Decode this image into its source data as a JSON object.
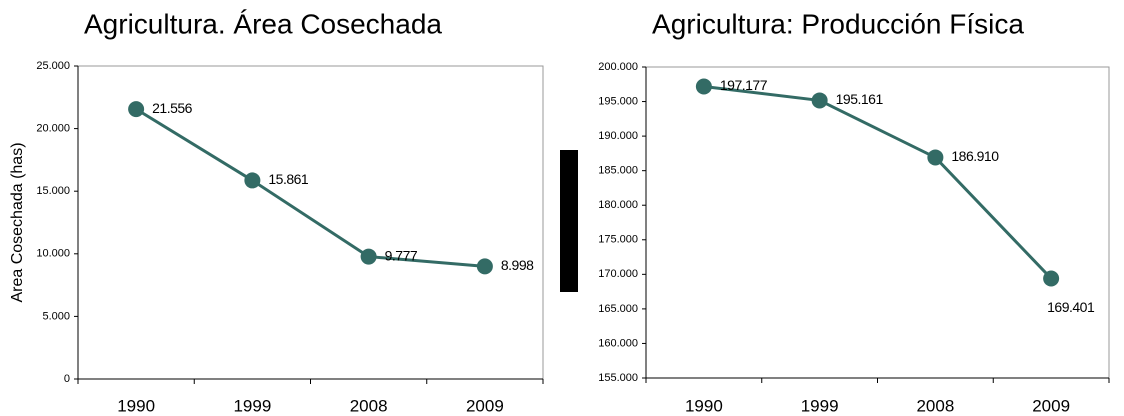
{
  "chart_data": [
    {
      "type": "line",
      "title": "Agricultura. Área Cosechada",
      "y_label": "Area Cosechada (has)",
      "categories": [
        "1990",
        "1999",
        "2008",
        "2009"
      ],
      "values": [
        21556,
        15861,
        9777,
        8998
      ],
      "value_labels": [
        "21.556",
        "15.861",
        "9.777",
        "8.998"
      ],
      "color": "#336b65",
      "ylim": [
        0,
        25000
      ],
      "yticks": [
        0,
        {
          "value": 5000,
          "label": "5.000"
        },
        {
          "value": 10000,
          "label": "10.000"
        },
        {
          "value": 15000,
          "label": "15.000"
        },
        {
          "value": 20000,
          "label": "20.000"
        },
        {
          "value": 25000,
          "label": "25.000"
        }
      ],
      "grid": false
    },
    {
      "type": "line",
      "title": "Agricultura: Producción Física",
      "categories": [
        "1990",
        "1999",
        "2008",
        "2009"
      ],
      "values": [
        197177,
        195161,
        186910,
        169401
      ],
      "value_labels": [
        "197.177",
        "195.161",
        "186.910",
        "169.401"
      ],
      "color": "#336b65",
      "ylim": [
        155000,
        200000
      ],
      "yticks": [
        {
          "value": 155000,
          "label": "155.000"
        },
        {
          "value": 160000,
          "label": "160.000"
        },
        {
          "value": 165000,
          "label": "165.000"
        },
        {
          "value": 170000,
          "label": "170.000"
        },
        {
          "value": 175000,
          "label": "175.000"
        },
        {
          "value": 180000,
          "label": "180.000"
        },
        {
          "value": 185000,
          "label": "185.000"
        },
        {
          "value": 190000,
          "label": "190.000"
        },
        {
          "value": 195000,
          "label": "195.000"
        },
        {
          "value": 200000,
          "label": "200.000"
        }
      ],
      "grid": false
    }
  ]
}
